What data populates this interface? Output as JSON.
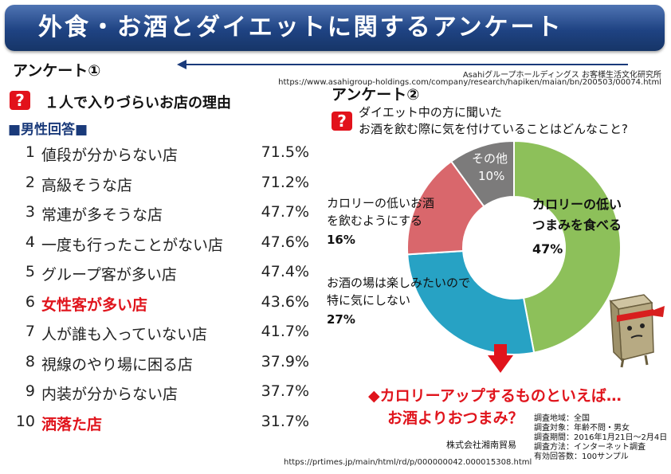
{
  "title": "外食・お酒とダイエットに関するアンケート",
  "source": {
    "org": "Asahiグループホールディングス お客様生活文化研究所",
    "url": "https://www.asahigroup-holdings.com/company/research/hapiken/maian/bn/200503/00074.html"
  },
  "survey1": {
    "heading": "アンケート①",
    "question": "１人で入りづらいお店の理由",
    "segment": "■男性回答■",
    "chart_data": {
      "type": "table",
      "rows": [
        {
          "rank": "1",
          "label": "値段が分からない店",
          "value": "71.5%"
        },
        {
          "rank": "2",
          "label": "高級そうな店",
          "value": "71.2%"
        },
        {
          "rank": "3",
          "label": "常連が多そうな店",
          "value": "47.7%"
        },
        {
          "rank": "4",
          "label": "一度も行ったことがない店",
          "value": "47.6%"
        },
        {
          "rank": "5",
          "label": "グループ客が多い店",
          "value": "47.4%"
        },
        {
          "rank": "6",
          "label": "女性客が多い店",
          "value": "43.6%"
        },
        {
          "rank": "7",
          "label": "人が誰も入っていない店",
          "value": "41.7%"
        },
        {
          "rank": "8",
          "label": "視線のやり場に困る店",
          "value": "37.9%"
        },
        {
          "rank": "9",
          "label": "内装が分からない店",
          "value": "37.7%"
        },
        {
          "rank": "10",
          "label": "洒落た店",
          "value": "31.7%"
        }
      ]
    }
  },
  "survey2": {
    "heading": "アンケート②",
    "question_line1": "ダイエット中の方に聞いた",
    "question_line2": "お酒を飲む際に気を付けていることはどんなこと?",
    "chart_data": {
      "type": "pie",
      "slices": [
        {
          "label_line1": "カロリーの低い",
          "label_line2": "つまみを食べる",
          "value": 47,
          "value_label": "47%",
          "color": "#8dc05a"
        },
        {
          "label_line1": "お酒の場は楽しみたいので",
          "label_line2": "特に気にしない",
          "value": 27,
          "value_label": "27%",
          "color": "#27a2c4"
        },
        {
          "label_line1": "カロリーの低いお酒",
          "label_line2": "を飲むようにする",
          "value": 16,
          "value_label": "16%",
          "color": "#d9676c"
        },
        {
          "label_line1": "その他",
          "label_line2": "",
          "value": 10,
          "value_label": "10%",
          "color": "#7c7b7b"
        }
      ]
    },
    "conclusion_line1": "◆カロリーアップするものといえば…",
    "conclusion_line2": "お酒よりおつまみ？"
  },
  "survey_details": [
    "調査地域：全国",
    "調査対象：年齢不問・男女",
    "調査期間：2016年1月21日～2月4日",
    "調査方法：インターネット調査",
    "有効回答数：100サンプル"
  ],
  "company": "株式会社湘南貿易",
  "bottom_url": "https://prtimes.jp/main/html/rd/p/000000042.000015308.html",
  "colors": {
    "accent_red": "#e0141c",
    "banner_blue": "#1f4383"
  }
}
